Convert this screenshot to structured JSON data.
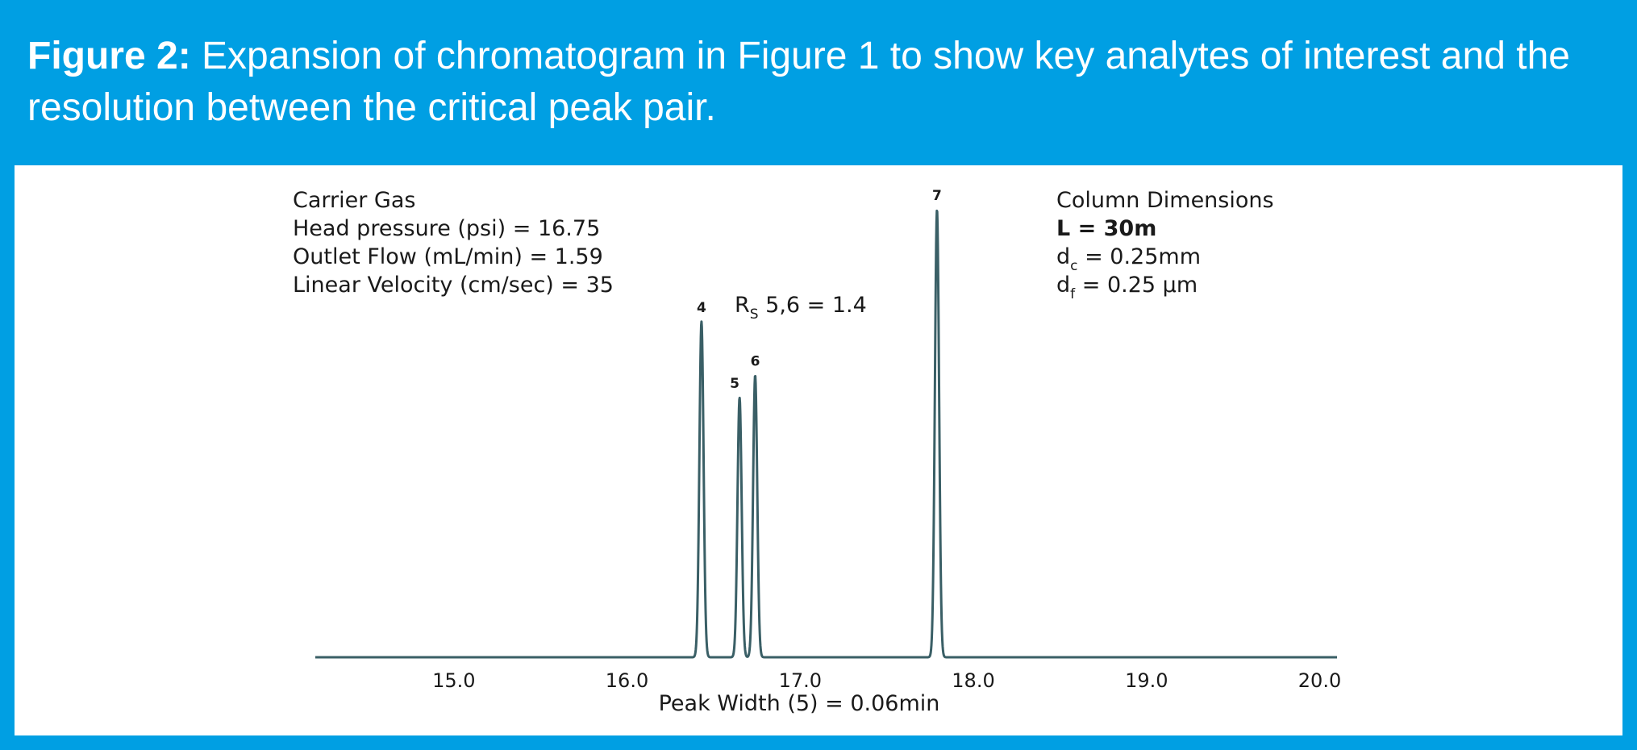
{
  "header": {
    "label": "Figure 2:",
    "text": "Expansion of chromatogram in Figure 1 to show key analytes of interest and the resolution between the critical peak pair."
  },
  "carrier_gas": {
    "title": "Carrier Gas",
    "head_pressure": "Head pressure (psi) = 16.75",
    "outlet_flow": "Outlet Flow (mL/min) = 1.59",
    "linear_velocity": "Linear Velocity (cm/sec) = 35"
  },
  "column": {
    "title": "Column Dimensions",
    "length": "L = 30m",
    "dc_base": "d",
    "dc_sub": "c",
    "dc_value": "= 0.25mm",
    "df_base": "d",
    "df_sub": "f",
    "df_value": "= 0.25 µm"
  },
  "resolution": {
    "base": "R",
    "sub": "S",
    "value": "5,6 = 1.4"
  },
  "chart_data": {
    "type": "line",
    "xlabel": "Peak Width (5) = 0.06min",
    "xlim": [
      14.2,
      20.1
    ],
    "ylim": [
      0,
      1.0
    ],
    "xticks": [
      "15.0",
      "16.0",
      "17.0",
      "18.0",
      "19.0",
      "20.0"
    ],
    "peaks": [
      {
        "label": "4",
        "rt": 16.43,
        "height": 0.75
      },
      {
        "label": "5",
        "rt": 16.65,
        "height": 0.58
      },
      {
        "label": "6",
        "rt": 16.74,
        "height": 0.63
      },
      {
        "label": "7",
        "rt": 17.79,
        "height": 1.0
      }
    ],
    "line_color": "#3a5f66"
  }
}
